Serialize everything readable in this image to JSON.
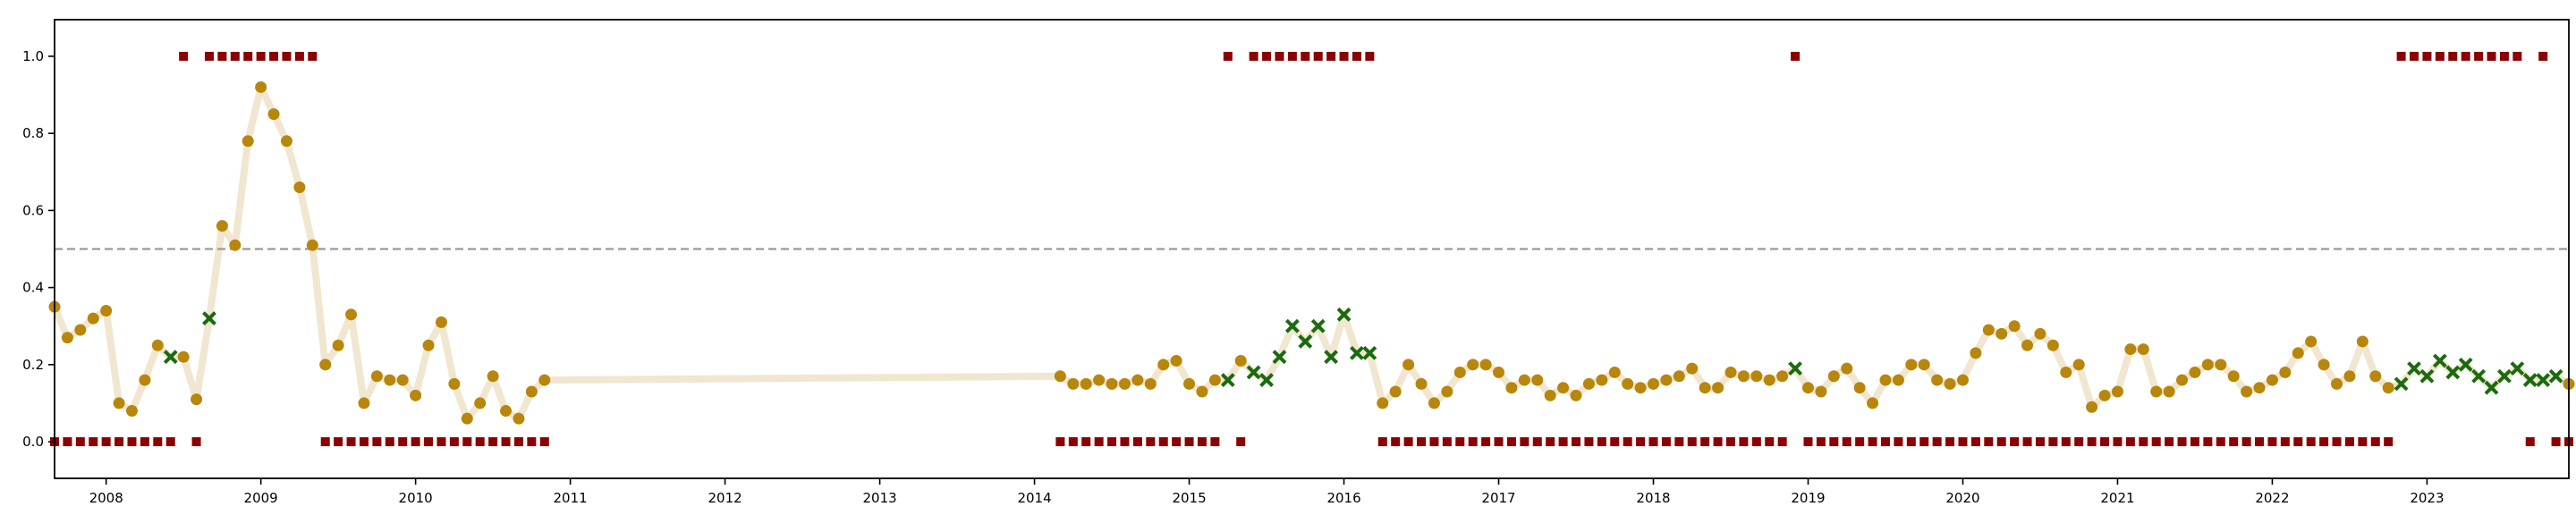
{
  "chart_data": {
    "type": "scatter",
    "title": "",
    "xlabel": "",
    "ylabel": "",
    "xlim": [
      "2007-09-01",
      "2023-12-01"
    ],
    "ylim": [
      -0.095,
      1.095
    ],
    "grid": false,
    "legend": "none",
    "x_ticks": [
      "2008",
      "2009",
      "2010",
      "2011",
      "2012",
      "2013",
      "2014",
      "2015",
      "2016",
      "2017",
      "2018",
      "2019",
      "2020",
      "2021",
      "2022",
      "2023"
    ],
    "y_ticks": [
      "0.0",
      "0.2",
      "0.4",
      "0.6",
      "0.8",
      "1.0"
    ],
    "threshold": 0.5,
    "colors": {
      "line": "#f1e6cf",
      "dot": "#b8860b",
      "cross": "#1a6b0f",
      "square": "#8b0000",
      "threshold": "#999999",
      "axis": "#000000"
    },
    "series": [
      {
        "kind": "probability",
        "segments": [
          {
            "start": "2007-09",
            "values": [
              0.35,
              0.27,
              0.29,
              0.32,
              0.34,
              0.1,
              0.08,
              0.16,
              0.25,
              0.22,
              0.22,
              0.11,
              0.32,
              0.56,
              0.51,
              0.78,
              0.92,
              0.85,
              0.78,
              0.66,
              0.51,
              0.2,
              0.25,
              0.33,
              0.1,
              0.17,
              0.16,
              0.16,
              0.12,
              0.25,
              0.31,
              0.15,
              0.06,
              0.1,
              0.17,
              0.08,
              0.06,
              0.13,
              0.16
            ]
          },
          {
            "start": "2014-03",
            "values": [
              0.17,
              0.15,
              0.15,
              0.16,
              0.15,
              0.15,
              0.16,
              0.15,
              0.2,
              0.21,
              0.15,
              0.13,
              0.16,
              0.16,
              0.21,
              0.18,
              0.16,
              0.22,
              0.3,
              0.26,
              0.3,
              0.22,
              0.33,
              0.23,
              0.23,
              0.1,
              0.13,
              0.2,
              0.15,
              0.1,
              0.13,
              0.18,
              0.2,
              0.2,
              0.18,
              0.14,
              0.16,
              0.16,
              0.12,
              0.14,
              0.12,
              0.15,
              0.16,
              0.18,
              0.15,
              0.14,
              0.15,
              0.16,
              0.17,
              0.19,
              0.14,
              0.14,
              0.18,
              0.17,
              0.17,
              0.16,
              0.17,
              0.19,
              0.14,
              0.13,
              0.17,
              0.19,
              0.14,
              0.1,
              0.16,
              0.16,
              0.2,
              0.2,
              0.16,
              0.15,
              0.16,
              0.23,
              0.29,
              0.28,
              0.3,
              0.25,
              0.28,
              0.25,
              0.18,
              0.2,
              0.09,
              0.12,
              0.13,
              0.24,
              0.24,
              0.13,
              0.13,
              0.16,
              0.18,
              0.2,
              0.2,
              0.17,
              0.13,
              0.14,
              0.16,
              0.18,
              0.23,
              0.26,
              0.2,
              0.15,
              0.17,
              0.26,
              0.17,
              0.14,
              0.15,
              0.19,
              0.17,
              0.21,
              0.18,
              0.2,
              0.17,
              0.14,
              0.17,
              0.19,
              0.16,
              0.16,
              0.17,
              0.15
            ]
          }
        ],
        "anomaly_months": [
          "2008-06",
          "2008-09",
          "2015-04",
          "2015-06",
          "2015-07",
          "2015-08",
          "2015-09",
          "2015-10",
          "2015-11",
          "2015-12",
          "2016-01",
          "2016-02",
          "2016-03",
          "2018-12",
          "2022-11",
          "2022-12",
          "2023-01",
          "2023-02",
          "2023-03",
          "2023-04",
          "2023-05",
          "2023-06",
          "2023-07",
          "2023-08",
          "2023-09",
          "2023-10",
          "2023-11"
        ]
      },
      {
        "kind": "label",
        "months_at_0": [
          "2007-09",
          "2007-10",
          "2007-11",
          "2007-12",
          "2008-01",
          "2008-02",
          "2008-03",
          "2008-04",
          "2008-05",
          "2008-06",
          "2008-08",
          "2009-06",
          "2009-07",
          "2009-08",
          "2009-09",
          "2009-10",
          "2009-11",
          "2009-12",
          "2010-01",
          "2010-02",
          "2010-03",
          "2010-04",
          "2010-05",
          "2010-06",
          "2010-07",
          "2010-08",
          "2010-09",
          "2010-10",
          "2010-11",
          "2014-03",
          "2014-04",
          "2014-05",
          "2014-06",
          "2014-07",
          "2014-08",
          "2014-09",
          "2014-10",
          "2014-11",
          "2014-12",
          "2015-01",
          "2015-02",
          "2015-03",
          "2015-05",
          "2016-04",
          "2016-05",
          "2016-06",
          "2016-07",
          "2016-08",
          "2016-09",
          "2016-10",
          "2016-11",
          "2016-12",
          "2017-01",
          "2017-02",
          "2017-03",
          "2017-04",
          "2017-05",
          "2017-06",
          "2017-07",
          "2017-08",
          "2017-09",
          "2017-10",
          "2017-11",
          "2017-12",
          "2018-01",
          "2018-02",
          "2018-03",
          "2018-04",
          "2018-05",
          "2018-06",
          "2018-07",
          "2018-08",
          "2018-09",
          "2018-10",
          "2018-11",
          "2019-01",
          "2019-02",
          "2019-03",
          "2019-04",
          "2019-05",
          "2019-06",
          "2019-07",
          "2019-08",
          "2019-09",
          "2019-10",
          "2019-11",
          "2019-12",
          "2020-01",
          "2020-02",
          "2020-03",
          "2020-04",
          "2020-05",
          "2020-06",
          "2020-07",
          "2020-08",
          "2020-09",
          "2020-10",
          "2020-11",
          "2020-12",
          "2021-01",
          "2021-02",
          "2021-03",
          "2021-04",
          "2021-05",
          "2021-06",
          "2021-07",
          "2021-08",
          "2021-09",
          "2021-10",
          "2021-11",
          "2021-12",
          "2022-01",
          "2022-02",
          "2022-03",
          "2022-04",
          "2022-05",
          "2022-06",
          "2022-07",
          "2022-08",
          "2022-09",
          "2022-10",
          "2023-09",
          "2023-11",
          "2023-12"
        ],
        "months_at_1": [
          "2008-07",
          "2008-09",
          "2008-10",
          "2008-11",
          "2008-12",
          "2009-01",
          "2009-02",
          "2009-03",
          "2009-04",
          "2009-05",
          "2015-04",
          "2015-06",
          "2015-07",
          "2015-08",
          "2015-09",
          "2015-10",
          "2015-11",
          "2015-12",
          "2016-01",
          "2016-02",
          "2016-03",
          "2018-12",
          "2022-11",
          "2022-12",
          "2023-01",
          "2023-02",
          "2023-03",
          "2023-04",
          "2023-05",
          "2023-06",
          "2023-07",
          "2023-08",
          "2023-10"
        ]
      }
    ]
  }
}
